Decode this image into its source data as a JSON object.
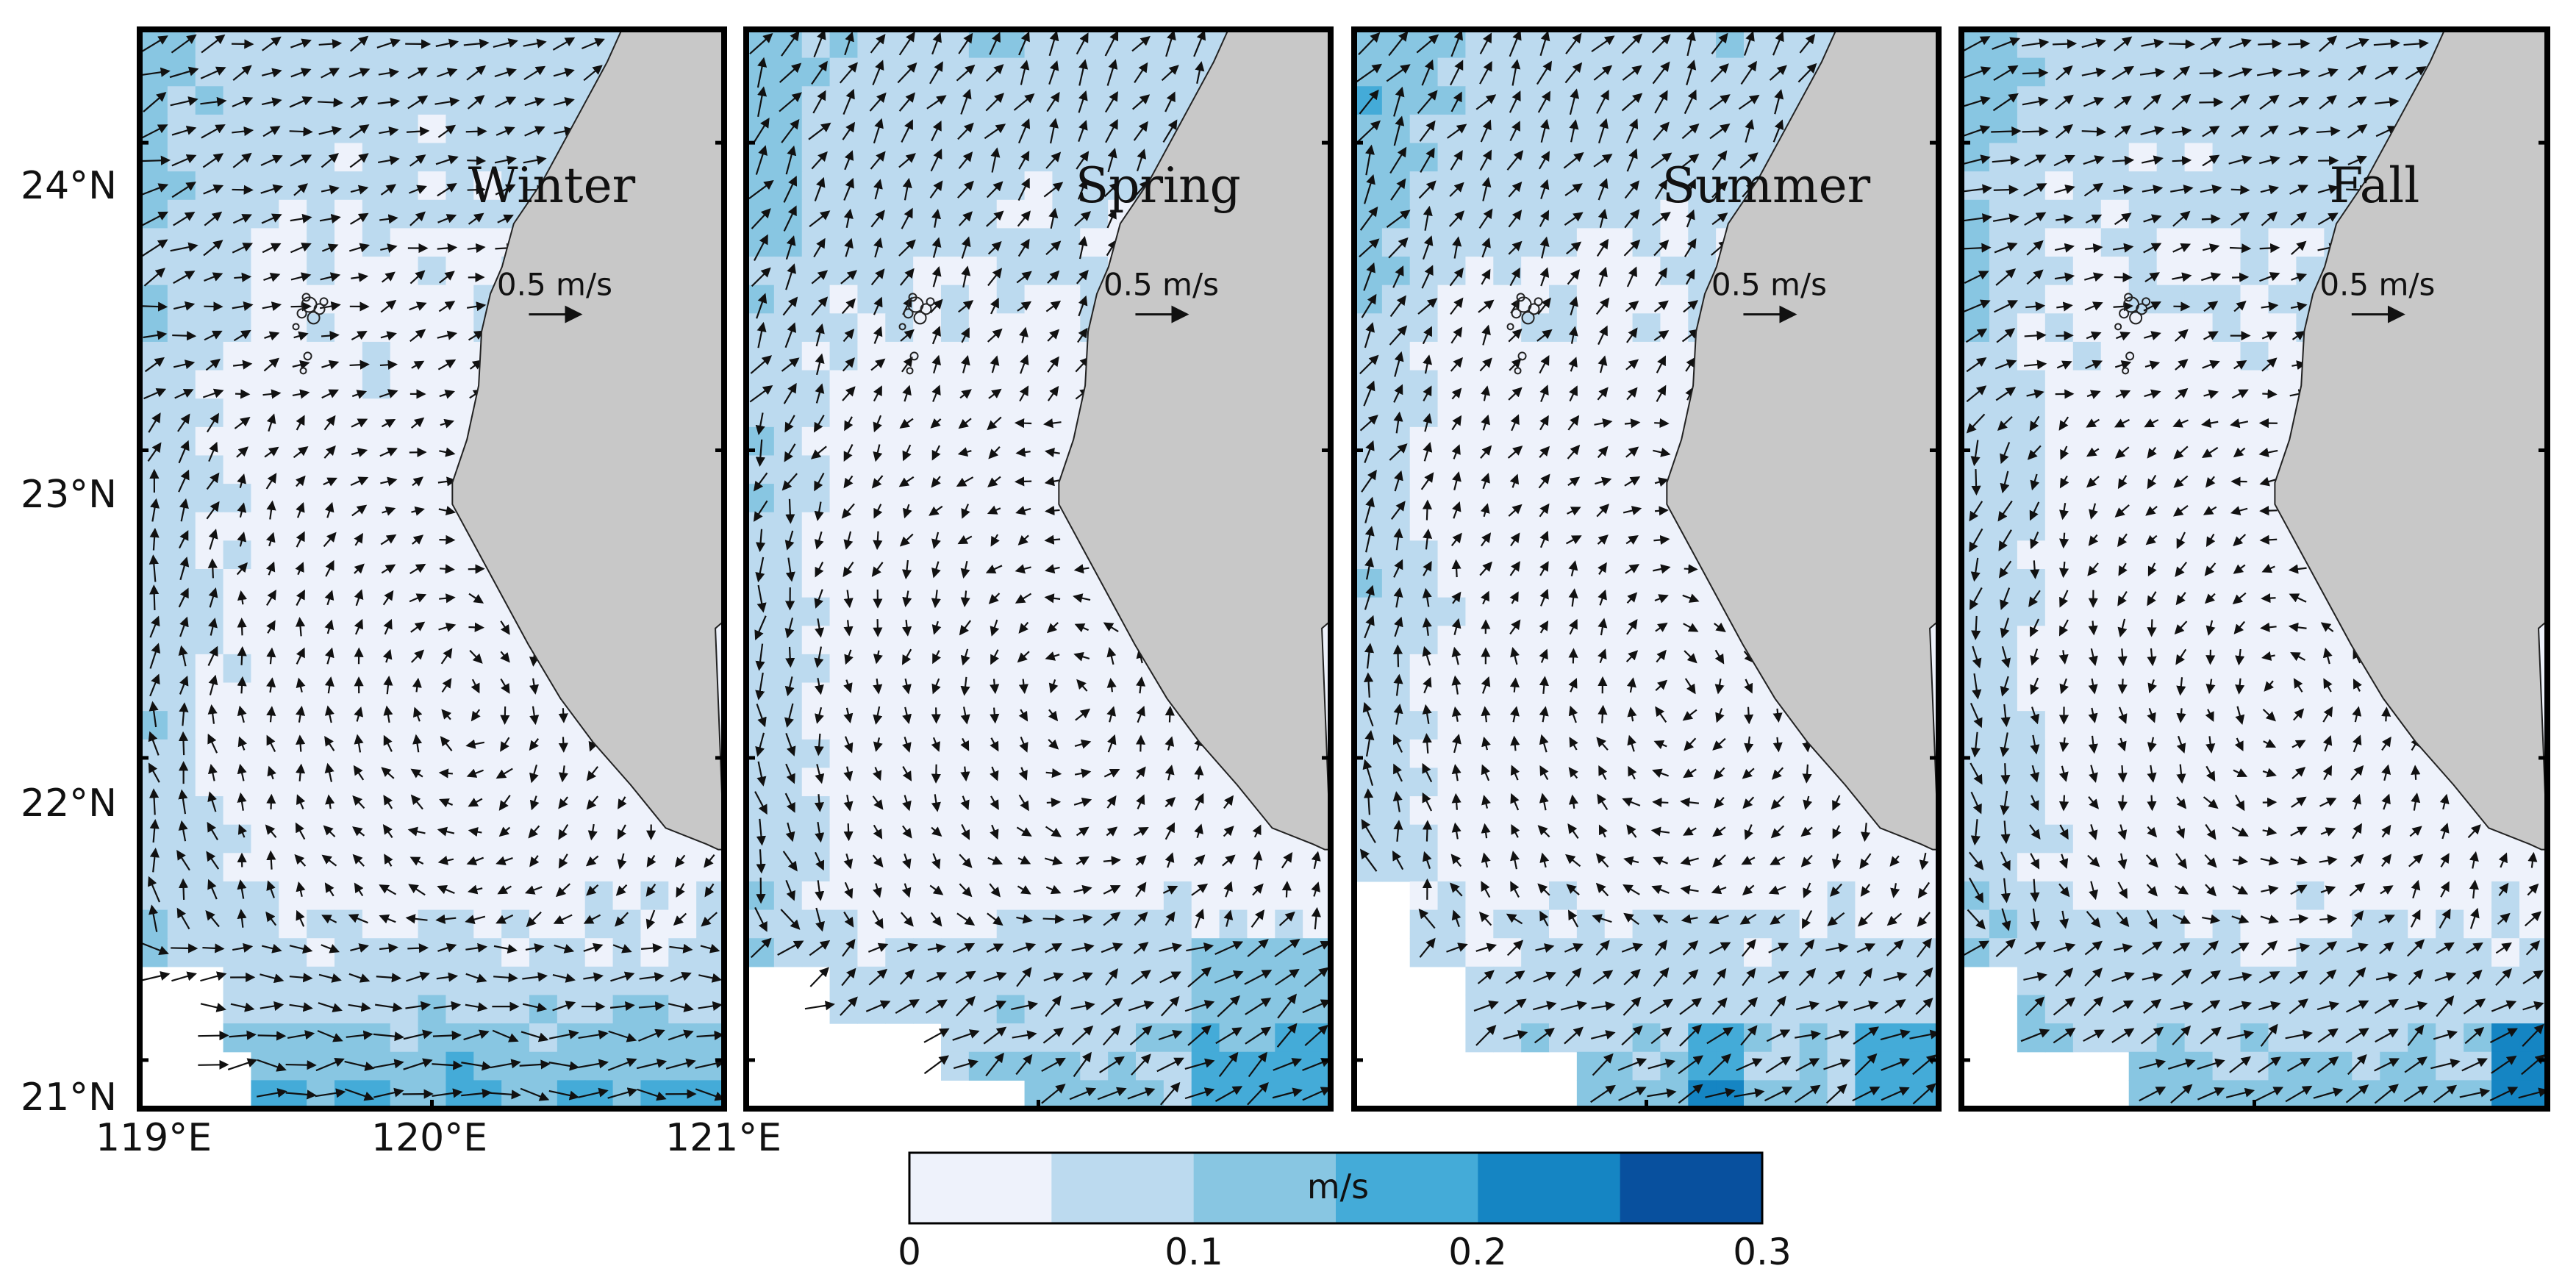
{
  "lat_labels": [
    "24°N",
    "23°N",
    "22°N",
    "21°N"
  ],
  "lon_labels": [
    "119°E",
    "120°E",
    "121°E"
  ],
  "panels": [
    {
      "season": "Winter",
      "scale_label": "0.5 m/s"
    },
    {
      "season": "Spring",
      "scale_label": "0.5 m/s"
    },
    {
      "season": "Summer",
      "scale_label": "0.5 m/s"
    },
    {
      "season": "Fall",
      "scale_label": "0.5 m/s"
    }
  ],
  "colorbar": {
    "unit": "m/s",
    "tick_labels": [
      "0",
      "0.1",
      "0.2",
      "0.3"
    ],
    "range": [
      0,
      0.3
    ],
    "bins": 6,
    "colors": [
      "#eef2fb",
      "#bcdaef",
      "#88c6e2",
      "#44abd8",
      "#1585c3",
      "#08509e"
    ]
  },
  "colors": {
    "land": "#c8c8c8",
    "no_data": "#ffffff",
    "frame": "#000000",
    "arrow": "#111111"
  }
}
